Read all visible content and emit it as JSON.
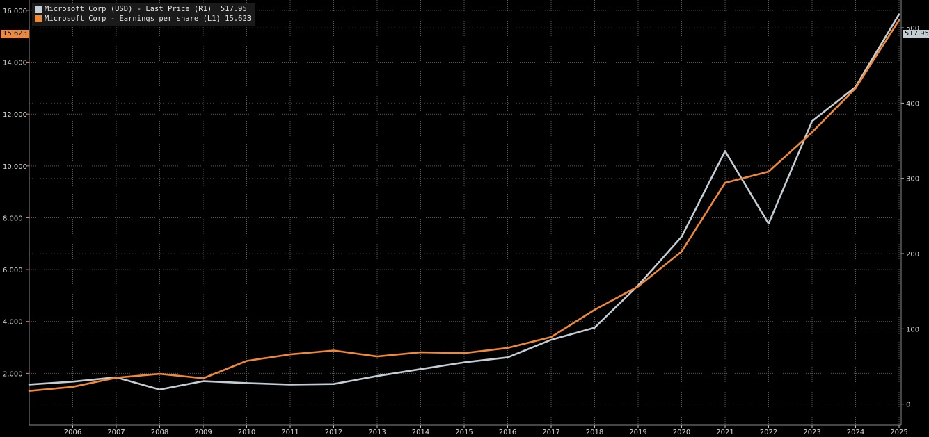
{
  "legend": {
    "entries": [
      {
        "text": "Microsoft Corp (USD) - Last Price (R1)  517.95",
        "color": "#c5cdd4"
      },
      {
        "text": "Microsoft Corp - Earnings per share (L1) 15.623",
        "color": "#f0883a"
      }
    ]
  },
  "badges": {
    "left": {
      "text": "15.623",
      "color": "#f0883a"
    },
    "right": {
      "text": "517.95",
      "color": "#c5cdd4"
    }
  },
  "chart_data": {
    "type": "line",
    "x_tick_labels": [
      "2006",
      "2007",
      "2008",
      "2009",
      "2010",
      "2011",
      "2012",
      "2013",
      "2014",
      "2015",
      "2016",
      "2017",
      "2018",
      "2019",
      "2020",
      "2021",
      "2022",
      "2023",
      "2024",
      "2025"
    ],
    "left_axis": {
      "ticks": [
        "2.000",
        "4.000",
        "6.000",
        "8.000",
        "10.000",
        "12.000",
        "14.000",
        "16.000"
      ],
      "ylim": [
        0.0,
        16.4
      ]
    },
    "right_axis": {
      "ticks": [
        "0",
        "100",
        "200",
        "300",
        "400",
        "500"
      ],
      "ylim": [
        -28,
        537
      ]
    },
    "grid": true,
    "series": [
      {
        "name": "Microsoft Corp (USD) - Last Price (R1)",
        "axis": "right",
        "color": "#c5cdd4",
        "x": [
          2005,
          2006,
          2007,
          2008,
          2009,
          2010,
          2011,
          2012,
          2013,
          2014,
          2015,
          2016,
          2017,
          2018,
          2019,
          2020,
          2021,
          2022,
          2023,
          2024,
          2025
        ],
        "values": [
          26.1,
          29.9,
          35.6,
          19.4,
          30.5,
          27.9,
          26.0,
          26.7,
          37.4,
          46.5,
          55.5,
          62.1,
          85.5,
          101.6,
          157.7,
          222.4,
          336.3,
          239.8,
          376.0,
          421.5,
          517.95
        ]
      },
      {
        "name": "Microsoft Corp - Earnings per share (L1)",
        "axis": "left",
        "color": "#f0883a",
        "x": [
          2005,
          2006,
          2007,
          2008,
          2009,
          2010,
          2011,
          2012,
          2013,
          2014,
          2015,
          2016,
          2017,
          2018,
          2019,
          2020,
          2021,
          2022,
          2023,
          2024,
          2025
        ],
        "values": [
          1.32,
          1.48,
          1.83,
          1.98,
          1.81,
          2.48,
          2.73,
          2.88,
          2.65,
          2.81,
          2.78,
          2.98,
          3.4,
          4.45,
          5.35,
          6.7,
          9.35,
          9.78,
          11.3,
          13.0,
          15.623
        ]
      }
    ]
  }
}
